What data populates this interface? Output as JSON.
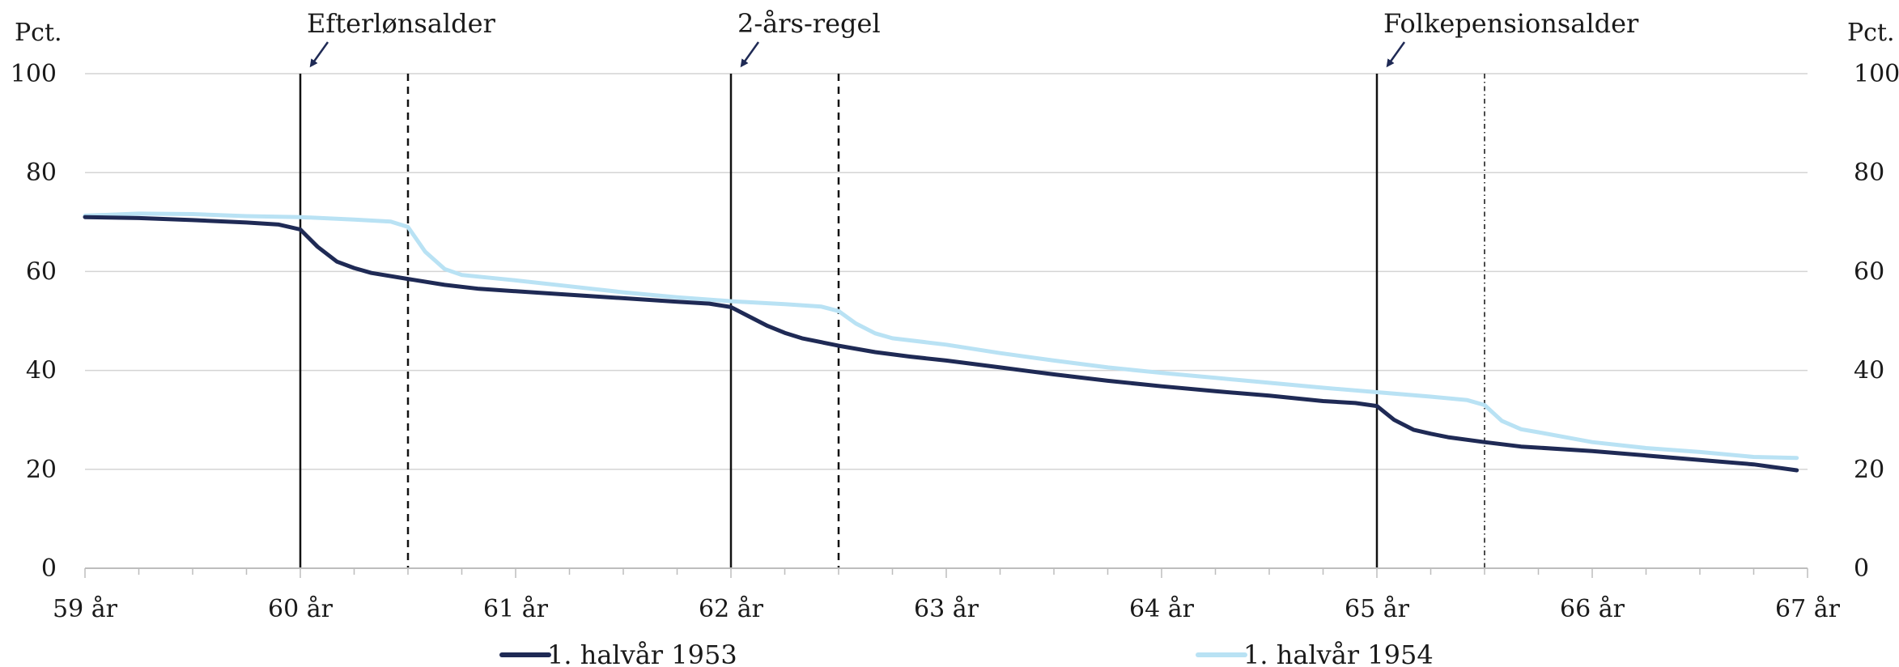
{
  "chart_data": {
    "type": "line",
    "title": "",
    "xlabel": "",
    "ylabel_left": "Pct.",
    "ylabel_right": "Pct.",
    "xlim": [
      59,
      67
    ],
    "ylim": [
      0,
      100
    ],
    "y_ticks": [
      0,
      20,
      40,
      60,
      80,
      100
    ],
    "x_ticks": [
      {
        "value": 59,
        "label": "59 år"
      },
      {
        "value": 60,
        "label": "60 år"
      },
      {
        "value": 61,
        "label": "61 år"
      },
      {
        "value": 62,
        "label": "62 år"
      },
      {
        "value": 63,
        "label": "63 år"
      },
      {
        "value": 64,
        "label": "64 år"
      },
      {
        "value": 65,
        "label": "65 år"
      },
      {
        "value": 66,
        "label": "66 år"
      },
      {
        "value": 67,
        "label": "67 år"
      }
    ],
    "grid": "horizontal",
    "legend_position": "bottom",
    "series": [
      {
        "name": "1. halvår 1953",
        "color": "#1f2a55",
        "points": [
          [
            59.0,
            71.0
          ],
          [
            59.25,
            70.8
          ],
          [
            59.5,
            70.4
          ],
          [
            59.75,
            69.9
          ],
          [
            59.9,
            69.5
          ],
          [
            60.0,
            68.5
          ],
          [
            60.08,
            65.0
          ],
          [
            60.17,
            62.0
          ],
          [
            60.25,
            60.7
          ],
          [
            60.33,
            59.7
          ],
          [
            60.5,
            58.5
          ],
          [
            60.67,
            57.3
          ],
          [
            60.83,
            56.5
          ],
          [
            61.0,
            56.0
          ],
          [
            61.25,
            55.3
          ],
          [
            61.5,
            54.6
          ],
          [
            61.75,
            53.9
          ],
          [
            61.9,
            53.5
          ],
          [
            62.0,
            52.8
          ],
          [
            62.08,
            51.0
          ],
          [
            62.17,
            49.0
          ],
          [
            62.25,
            47.6
          ],
          [
            62.33,
            46.5
          ],
          [
            62.5,
            45.0
          ],
          [
            62.67,
            43.7
          ],
          [
            62.83,
            42.8
          ],
          [
            63.0,
            42.0
          ],
          [
            63.25,
            40.6
          ],
          [
            63.5,
            39.2
          ],
          [
            63.75,
            37.9
          ],
          [
            64.0,
            36.8
          ],
          [
            64.25,
            35.8
          ],
          [
            64.5,
            34.9
          ],
          [
            64.75,
            33.8
          ],
          [
            64.9,
            33.4
          ],
          [
            65.0,
            32.8
          ],
          [
            65.08,
            30.0
          ],
          [
            65.17,
            28.0
          ],
          [
            65.25,
            27.2
          ],
          [
            65.33,
            26.5
          ],
          [
            65.5,
            25.5
          ],
          [
            65.67,
            24.6
          ],
          [
            66.0,
            23.7
          ],
          [
            66.25,
            22.8
          ],
          [
            66.5,
            21.9
          ],
          [
            66.75,
            21.0
          ],
          [
            66.95,
            19.8
          ]
        ]
      },
      {
        "name": "1. halvår 1954",
        "color": "#b9e2f4",
        "points": [
          [
            59.0,
            71.3
          ],
          [
            59.25,
            71.7
          ],
          [
            59.5,
            71.6
          ],
          [
            59.75,
            71.2
          ],
          [
            60.0,
            71.0
          ],
          [
            60.25,
            70.5
          ],
          [
            60.42,
            70.1
          ],
          [
            60.5,
            69.0
          ],
          [
            60.58,
            64.0
          ],
          [
            60.67,
            60.5
          ],
          [
            60.75,
            59.3
          ],
          [
            61.0,
            58.2
          ],
          [
            61.25,
            57.0
          ],
          [
            61.5,
            55.8
          ],
          [
            61.75,
            54.8
          ],
          [
            62.0,
            54.0
          ],
          [
            62.25,
            53.4
          ],
          [
            62.42,
            52.9
          ],
          [
            62.5,
            52.0
          ],
          [
            62.58,
            49.5
          ],
          [
            62.67,
            47.5
          ],
          [
            62.75,
            46.5
          ],
          [
            63.0,
            45.2
          ],
          [
            63.25,
            43.5
          ],
          [
            63.5,
            42.0
          ],
          [
            63.75,
            40.6
          ],
          [
            64.0,
            39.5
          ],
          [
            64.25,
            38.5
          ],
          [
            64.5,
            37.5
          ],
          [
            64.75,
            36.5
          ],
          [
            65.0,
            35.6
          ],
          [
            65.25,
            34.7
          ],
          [
            65.42,
            34.0
          ],
          [
            65.5,
            33.0
          ],
          [
            65.58,
            29.8
          ],
          [
            65.67,
            28.1
          ],
          [
            65.75,
            27.5
          ],
          [
            66.0,
            25.5
          ],
          [
            66.25,
            24.3
          ],
          [
            66.5,
            23.5
          ],
          [
            66.75,
            22.5
          ],
          [
            66.95,
            22.3
          ]
        ]
      }
    ],
    "annotations": [
      {
        "label": "Efterlønsalder",
        "x": 60.0
      },
      {
        "label": "2-års-regel",
        "x": 62.0
      },
      {
        "label": "Folkepensionsalder",
        "x": 65.0
      }
    ],
    "vertical_lines": [
      {
        "x": 60.0,
        "style": "solid"
      },
      {
        "x": 60.5,
        "style": "dashed"
      },
      {
        "x": 62.0,
        "style": "solid"
      },
      {
        "x": 62.5,
        "style": "dashed"
      },
      {
        "x": 65.0,
        "style": "solid"
      },
      {
        "x": 65.5,
        "style": "dashdot"
      }
    ]
  }
}
